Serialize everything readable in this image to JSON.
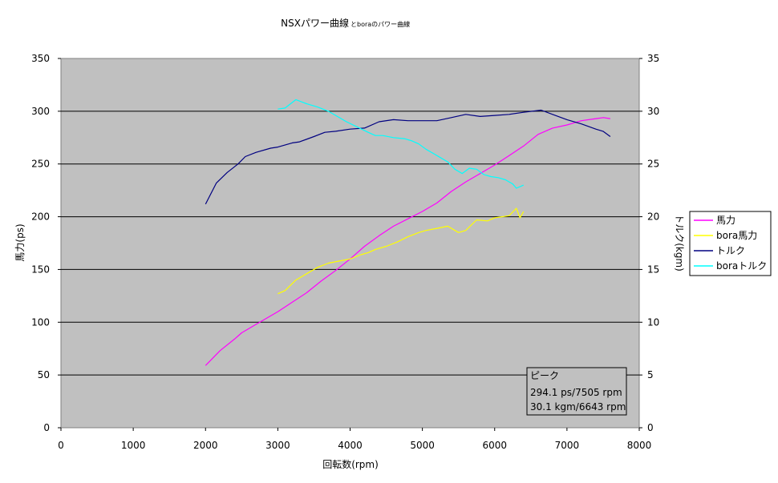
{
  "chart_data": {
    "type": "line",
    "title": "NSXパワー曲線",
    "subtitle": "とboraのパワー曲線",
    "xlabel": "回転数(rpm)",
    "ylabel_left": "馬力(ps)",
    "ylabel_right": "トルク(kgm)",
    "xlim": [
      0,
      8000
    ],
    "ylim_left": [
      0,
      350
    ],
    "ylim_right": [
      0,
      35
    ],
    "x_ticks": [
      "0",
      "1000",
      "2000",
      "3000",
      "4000",
      "5000",
      "6000",
      "7000",
      "8000"
    ],
    "y_left_ticks": [
      "0",
      "50",
      "100",
      "150",
      "200",
      "250",
      "300",
      "350"
    ],
    "y_right_ticks": [
      "0",
      "5",
      "10",
      "15",
      "20",
      "25",
      "30",
      "35"
    ],
    "grid": true,
    "legend_position": "right",
    "series": [
      {
        "name": "馬力",
        "axis": "left",
        "color": "#ff00ff",
        "points": [
          [
            2000,
            59
          ],
          [
            2200,
            73
          ],
          [
            2400,
            84
          ],
          [
            2500,
            90
          ],
          [
            2700,
            98
          ],
          [
            3000,
            110
          ],
          [
            3200,
            119
          ],
          [
            3400,
            128
          ],
          [
            3600,
            139
          ],
          [
            3800,
            149
          ],
          [
            4000,
            160
          ],
          [
            4200,
            172
          ],
          [
            4400,
            182
          ],
          [
            4600,
            191
          ],
          [
            4800,
            198
          ],
          [
            5000,
            205
          ],
          [
            5200,
            213
          ],
          [
            5400,
            224
          ],
          [
            5600,
            233
          ],
          [
            5800,
            241
          ],
          [
            6000,
            249
          ],
          [
            6200,
            258
          ],
          [
            6400,
            267
          ],
          [
            6600,
            278
          ],
          [
            6800,
            284
          ],
          [
            7000,
            287
          ],
          [
            7200,
            291
          ],
          [
            7400,
            293
          ],
          [
            7505,
            294
          ],
          [
            7600,
            293
          ]
        ]
      },
      {
        "name": "bora馬力",
        "axis": "left",
        "color": "#ffff00",
        "points": [
          [
            3000,
            127
          ],
          [
            3100,
            130
          ],
          [
            3250,
            140
          ],
          [
            3400,
            146
          ],
          [
            3550,
            152
          ],
          [
            3700,
            156
          ],
          [
            3850,
            158
          ],
          [
            4000,
            160
          ],
          [
            4150,
            164
          ],
          [
            4250,
            166
          ],
          [
            4350,
            169
          ],
          [
            4500,
            172
          ],
          [
            4650,
            176
          ],
          [
            4800,
            181
          ],
          [
            4950,
            185
          ],
          [
            5050,
            187
          ],
          [
            5200,
            189
          ],
          [
            5350,
            191
          ],
          [
            5500,
            185
          ],
          [
            5600,
            187
          ],
          [
            5750,
            197
          ],
          [
            5900,
            196
          ],
          [
            6000,
            199
          ],
          [
            6100,
            200
          ],
          [
            6200,
            201
          ],
          [
            6300,
            208
          ],
          [
            6350,
            199
          ],
          [
            6400,
            205
          ]
        ]
      },
      {
        "name": "トルク",
        "axis": "right",
        "color": "#000080",
        "points": [
          [
            2000,
            21.2
          ],
          [
            2150,
            23.2
          ],
          [
            2300,
            24.2
          ],
          [
            2450,
            25.0
          ],
          [
            2550,
            25.7
          ],
          [
            2700,
            26.1
          ],
          [
            2900,
            26.5
          ],
          [
            3000,
            26.6
          ],
          [
            3200,
            27.0
          ],
          [
            3300,
            27.1
          ],
          [
            3500,
            27.6
          ],
          [
            3650,
            28.0
          ],
          [
            3800,
            28.1
          ],
          [
            4000,
            28.3
          ],
          [
            4200,
            28.4
          ],
          [
            4400,
            29.0
          ],
          [
            4600,
            29.2
          ],
          [
            4800,
            29.1
          ],
          [
            5000,
            29.1
          ],
          [
            5200,
            29.1
          ],
          [
            5400,
            29.4
          ],
          [
            5600,
            29.7
          ],
          [
            5800,
            29.5
          ],
          [
            6000,
            29.6
          ],
          [
            6200,
            29.7
          ],
          [
            6400,
            29.9
          ],
          [
            6643,
            30.1
          ],
          [
            6800,
            29.7
          ],
          [
            7000,
            29.2
          ],
          [
            7200,
            28.8
          ],
          [
            7400,
            28.3
          ],
          [
            7500,
            28.1
          ],
          [
            7600,
            27.6
          ]
        ]
      },
      {
        "name": "boraトルク",
        "axis": "right",
        "color": "#00ffff",
        "points": [
          [
            3000,
            30.2
          ],
          [
            3100,
            30.3
          ],
          [
            3250,
            31.1
          ],
          [
            3400,
            30.7
          ],
          [
            3550,
            30.4
          ],
          [
            3700,
            30.0
          ],
          [
            3800,
            29.6
          ],
          [
            3950,
            29.0
          ],
          [
            4100,
            28.5
          ],
          [
            4250,
            28.0
          ],
          [
            4350,
            27.7
          ],
          [
            4450,
            27.7
          ],
          [
            4600,
            27.5
          ],
          [
            4750,
            27.4
          ],
          [
            4850,
            27.2
          ],
          [
            4950,
            26.9
          ],
          [
            5050,
            26.4
          ],
          [
            5150,
            26.0
          ],
          [
            5250,
            25.6
          ],
          [
            5350,
            25.2
          ],
          [
            5450,
            24.5
          ],
          [
            5550,
            24.1
          ],
          [
            5650,
            24.6
          ],
          [
            5750,
            24.5
          ],
          [
            5850,
            24.0
          ],
          [
            5950,
            23.8
          ],
          [
            6050,
            23.7
          ],
          [
            6150,
            23.5
          ],
          [
            6250,
            23.1
          ],
          [
            6300,
            22.7
          ],
          [
            6400,
            23.0
          ]
        ]
      }
    ],
    "peak_box": {
      "title": "ピーク",
      "line1": "294.1 ps/7505 rpm",
      "line2": "30.1 kgm/6643 rpm"
    }
  }
}
